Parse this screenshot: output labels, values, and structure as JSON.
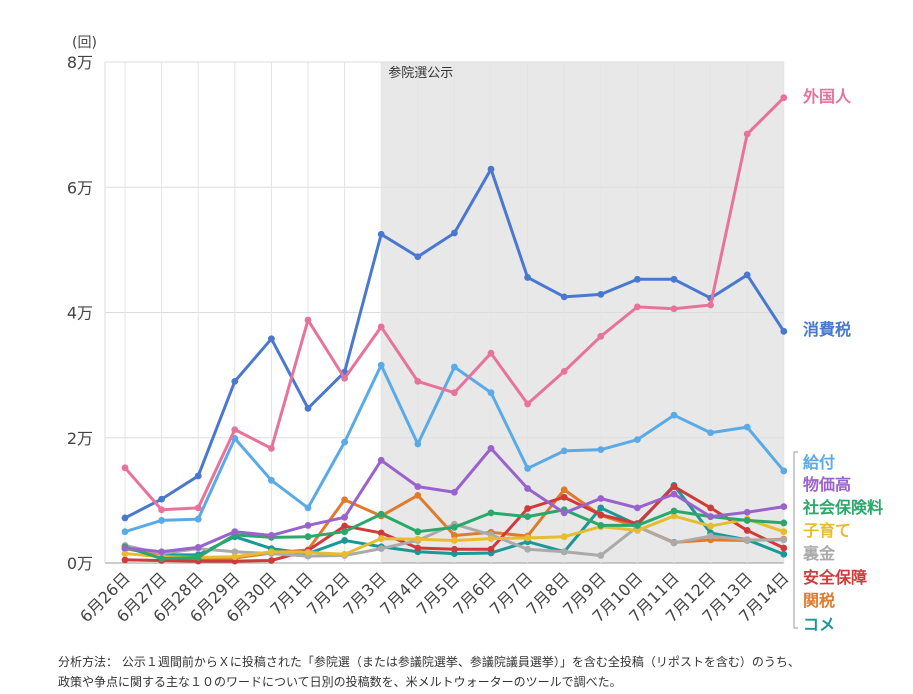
{
  "chart_data": {
    "type": "line",
    "y_unit_label": "(回)",
    "ylim": [
      0,
      80000
    ],
    "y_ticks": [
      {
        "value": 0,
        "label": "0万"
      },
      {
        "value": 20000,
        "label": "2万"
      },
      {
        "value": 40000,
        "label": "4万"
      },
      {
        "value": 60000,
        "label": "6万"
      },
      {
        "value": 80000,
        "label": "8万"
      }
    ],
    "grid": "horizontal and vertical",
    "categories": [
      "6月26日",
      "6月27日",
      "6月28日",
      "6月29日",
      "6月30日",
      "7月1日",
      "7月2日",
      "7月3日",
      "7月4日",
      "7月5日",
      "7月6日",
      "7月7日",
      "7月8日",
      "7月9日",
      "7月10日",
      "7月11日",
      "7月12日",
      "7月13日",
      "7月14日"
    ],
    "shaded_region": {
      "from": "7月3日",
      "to": "7月14日",
      "label": "参院選公示",
      "color": "#e8e8e8"
    },
    "legend_placement": "right (labels at line ends)",
    "series": [
      {
        "name": "外国人",
        "color": "#e8739a",
        "values": [
          15200,
          8500,
          8800,
          21300,
          18300,
          38800,
          29500,
          37700,
          29000,
          27200,
          33500,
          25400,
          30600,
          36200,
          40900,
          40600,
          41200,
          68500,
          74300
        ]
      },
      {
        "name": "消費税",
        "color": "#4a78d0",
        "values": [
          7200,
          10200,
          13900,
          29000,
          35800,
          24700,
          30500,
          52500,
          48900,
          52700,
          62900,
          45600,
          42500,
          42900,
          45300,
          45300,
          42300,
          46000,
          37000
        ]
      },
      {
        "name": "給付",
        "color": "#5aaae8",
        "values": [
          5000,
          6800,
          7000,
          19900,
          13200,
          8800,
          19300,
          31600,
          19000,
          31300,
          27200,
          15100,
          17900,
          18100,
          19700,
          23600,
          20800,
          21700,
          14700
        ]
      },
      {
        "name": "物価高",
        "color": "#9a62cc",
        "values": [
          2400,
          1800,
          2500,
          5000,
          4400,
          6000,
          7300,
          16400,
          12200,
          11300,
          18300,
          11900,
          8000,
          10300,
          8800,
          11000,
          7400,
          8100,
          9000
        ]
      },
      {
        "name": "社会保険料",
        "color": "#2aa86a",
        "values": [
          2600,
          700,
          900,
          4500,
          4100,
          4200,
          5000,
          7800,
          5000,
          5700,
          8000,
          7400,
          8500,
          6000,
          6000,
          8300,
          7400,
          6800,
          6400
        ]
      },
      {
        "name": "子育て",
        "color": "#e8bc30",
        "values": [
          1500,
          1000,
          900,
          1000,
          1800,
          1700,
          1400,
          3900,
          3800,
          3600,
          3900,
          4000,
          4200,
          5800,
          5200,
          7500,
          5900,
          7000,
          5000
        ]
      },
      {
        "name": "裏金",
        "color": "#aaaaaa",
        "values": [
          2800,
          1500,
          2300,
          1800,
          1500,
          1100,
          1200,
          2300,
          3600,
          6200,
          4500,
          2200,
          1800,
          1200,
          5800,
          3200,
          4300,
          3700,
          3700
        ]
      },
      {
        "name": "安全保障",
        "color": "#d03a3a",
        "values": [
          500,
          400,
          300,
          300,
          400,
          2000,
          5900,
          4800,
          2400,
          2200,
          2200,
          8700,
          10500,
          7700,
          6300,
          12200,
          8800,
          5200,
          2400
        ]
      },
      {
        "name": "関税",
        "color": "#e07b2e",
        "values": [
          2400,
          1100,
          600,
          800,
          1600,
          2100,
          10100,
          7500,
          10800,
          4400,
          4900,
          4300,
          11700,
          7600,
          5800,
          3300,
          3700,
          3600,
          3800
        ]
      },
      {
        "name": "コメ",
        "color": "#1a9898",
        "values": [
          2300,
          1300,
          1300,
          4200,
          2300,
          1500,
          3600,
          2600,
          1800,
          1500,
          1600,
          3400,
          1800,
          8800,
          6100,
          12400,
          4800,
          3700,
          1400
        ]
      }
    ],
    "note_lines": [
      "分析方法： 公示１週間前からＸに投稿された「参院選（または参議院選挙、参議院議員選挙）」を含む全投稿（リポストを含む）のうち、",
      "政策や争点に関する主な１０のワードについて日別の投稿数を、米メルトウォーターのツールで調べた。"
    ]
  }
}
